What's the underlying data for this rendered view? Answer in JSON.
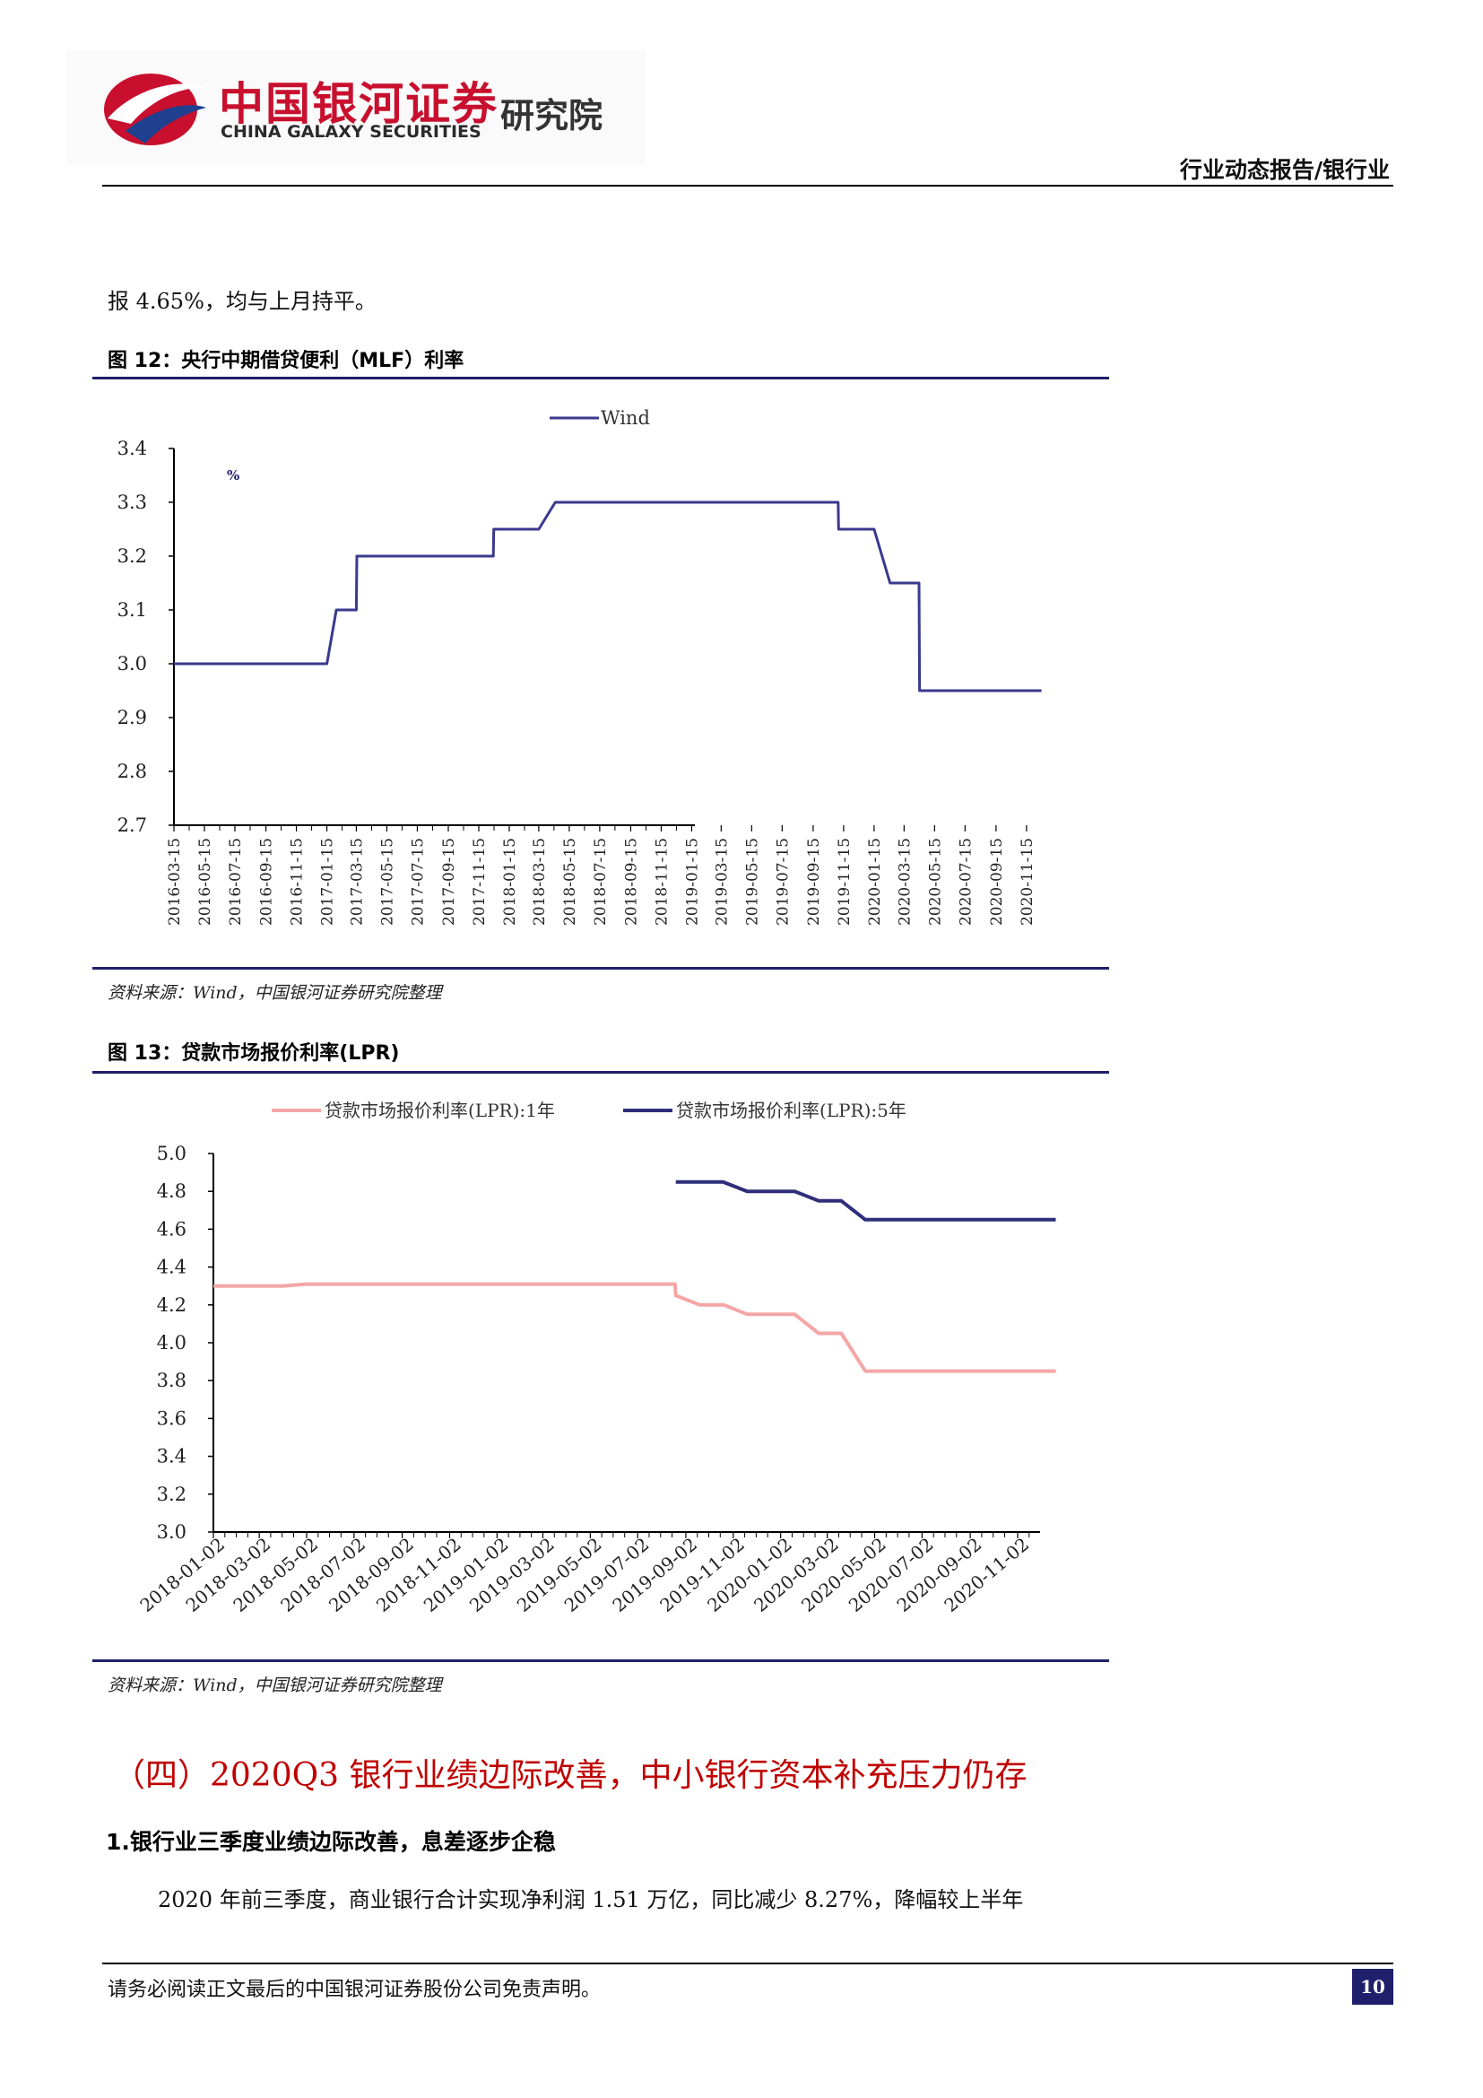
{
  "header": {
    "logo_cn": "中国银河证券",
    "logo_en": "CHINA GALAXY SECURITIES",
    "logo_inst": "研究院",
    "doc_type": "行业动态报告/银行业"
  },
  "intro_text": "报 4.65%，均与上月持平。",
  "figure12": {
    "title": "图 12：央行中期借贷便利（MLF）利率",
    "source": "资料来源：Wind，中国银河证券研究院整理"
  },
  "figure13": {
    "title": "图 13：贷款市场报价利率(LPR)",
    "source": "资料来源：Wind，中国银河证券研究院整理"
  },
  "chart_data": [
    {
      "type": "line",
      "legend_position": "top-center",
      "unit_label": "%",
      "ylim": [
        2.7,
        3.4
      ],
      "yticks": [
        "3.4",
        "3.3",
        "3.2",
        "3.1",
        "3.0",
        "2.9",
        "2.8",
        "2.7"
      ],
      "xticks": [
        "2016-03-15",
        "2016-05-15",
        "2016-07-15",
        "2016-09-15",
        "2016-11-15",
        "2017-01-15",
        "2017-03-15",
        "2017-05-15",
        "2017-07-15",
        "2017-09-15",
        "2017-11-15",
        "2018-01-15",
        "2018-03-15",
        "2018-05-15",
        "2018-07-15",
        "2018-09-15",
        "2018-11-15",
        "2019-01-15",
        "2019-03-15",
        "2019-05-15",
        "2019-07-15",
        "2019-09-15",
        "2019-11-15",
        "2020-01-15",
        "2020-03-15",
        "2020-05-15",
        "2020-07-15",
        "2020-09-15",
        "2020-11-15"
      ],
      "series": [
        {
          "name": "Wind",
          "color": "#3a3a8f",
          "x": [
            "2016-03-15",
            "2017-01-15",
            "2017-02-03",
            "2017-03-15",
            "2017-03-16",
            "2017-12-14",
            "2017-12-15",
            "2018-03-15",
            "2018-04-17",
            "2019-11-04",
            "2019-11-05",
            "2020-01-14",
            "2020-01-15",
            "2020-02-16",
            "2020-02-17",
            "2020-04-14",
            "2020-04-15",
            "2020-12-15"
          ],
          "y": [
            3.0,
            3.0,
            3.1,
            3.1,
            3.2,
            3.2,
            3.25,
            3.25,
            3.3,
            3.3,
            3.25,
            3.25,
            3.25,
            3.15,
            3.15,
            3.15,
            2.95,
            2.95
          ]
        }
      ]
    },
    {
      "type": "line",
      "legend_position": "top-center",
      "ylim": [
        3.0,
        5.0
      ],
      "yticks": [
        "5.0",
        "4.8",
        "4.6",
        "4.4",
        "4.2",
        "4.0",
        "3.8",
        "3.6",
        "3.4",
        "3.2",
        "3.0"
      ],
      "xticks": [
        "2018-01-02",
        "2018-03-02",
        "2018-05-02",
        "2018-07-02",
        "2018-09-02",
        "2018-11-02",
        "2019-01-02",
        "2019-03-02",
        "2019-05-02",
        "2019-07-02",
        "2019-09-02",
        "2019-11-02",
        "2020-01-02",
        "2020-03-02",
        "2020-05-02",
        "2020-07-02",
        "2020-09-02",
        "2020-11-02"
      ],
      "series": [
        {
          "name": "贷款市场报价利率(LPR):1年",
          "color": "#f4a6a6",
          "x": [
            "2018-01-02",
            "2018-04-01",
            "2018-05-02",
            "2019-08-19",
            "2019-08-20",
            "2019-09-20",
            "2019-10-21",
            "2019-11-20",
            "2020-01-20",
            "2020-02-20",
            "2020-03-20",
            "2020-04-20",
            "2020-12-21"
          ],
          "y": [
            4.3,
            4.3,
            4.31,
            4.31,
            4.25,
            4.2,
            4.2,
            4.15,
            4.15,
            4.05,
            4.05,
            3.85,
            3.85
          ]
        },
        {
          "name": "贷款市场报价利率(LPR):5年",
          "color": "#2e2e7a",
          "x": [
            "2019-08-20",
            "2019-10-20",
            "2019-11-20",
            "2020-01-20",
            "2020-02-20",
            "2020-03-20",
            "2020-04-20",
            "2020-12-21"
          ],
          "y": [
            4.85,
            4.85,
            4.8,
            4.8,
            4.75,
            4.75,
            4.65,
            4.65
          ]
        }
      ]
    }
  ],
  "section": {
    "heading": "（四）2020Q3 银行业绩边际改善，中小银行资本补充压力仍存",
    "subheading": "1.银行业三季度业绩边际改善，息差逐步企稳",
    "paragraph": "2020 年前三季度，商业银行合计实现净利润 1.51 万亿，同比减少 8.27%，降幅较上半年"
  },
  "footer": {
    "disclaimer": "请务必阅读正文最后的中国银河证券股份公司免责声明。",
    "page_number": "10"
  }
}
